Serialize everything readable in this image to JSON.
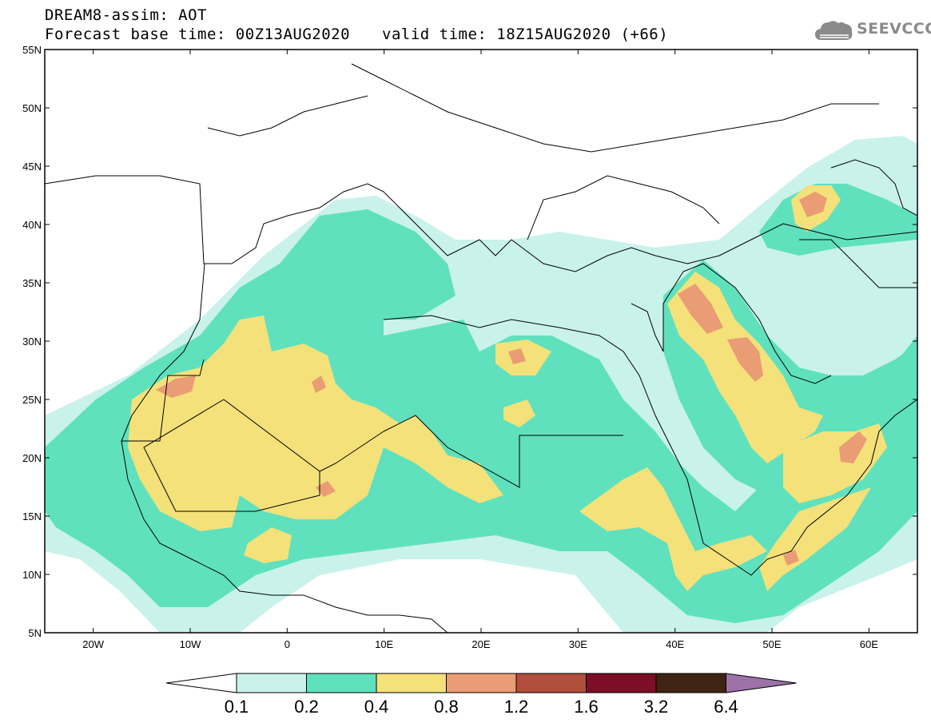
{
  "header": {
    "line1": "DREAM8-assim: AOT",
    "line2": "Forecast base time: 00Z13AUG2020",
    "valid": "valid time: 18Z15AUG2020 (+66)"
  },
  "logo": {
    "text": "SEEVCCC",
    "icon": "cloud-icon"
  },
  "map": {
    "lat_range": [
      5,
      55
    ],
    "lon_range": [
      -25,
      65
    ],
    "lat_labels": [
      "55N",
      "50N",
      "45N",
      "40N",
      "35N",
      "30N",
      "25N",
      "20N",
      "15N",
      "10N",
      "5N"
    ],
    "lon_labels": [
      "20W",
      "10W",
      "0",
      "10E",
      "20E",
      "30E",
      "40E",
      "50E",
      "60E"
    ]
  },
  "colorbar": {
    "labels": [
      "0.1",
      "0.2",
      "0.4",
      "0.8",
      "1.2",
      "1.6",
      "3.2",
      "6.4"
    ],
    "colors": [
      "#c9f2ea",
      "#5fe1be",
      "#f4e17a",
      "#ea9c74",
      "#b24e3c",
      "#7c0e26",
      "#3f2414",
      "#9d72a8"
    ],
    "left_arrow_color": "#ffffff"
  }
}
